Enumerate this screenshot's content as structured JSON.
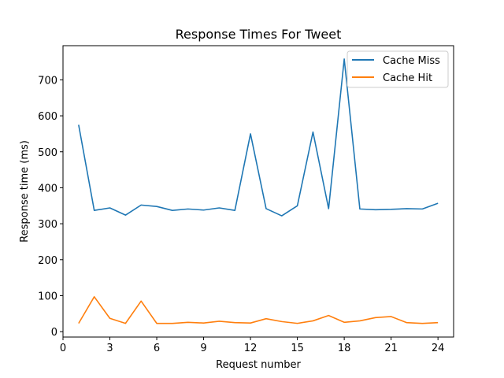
{
  "chart_data": {
    "type": "line",
    "title": "Response Times For Tweet",
    "xlabel": "Request number",
    "ylabel": "Response time (ms)",
    "x": [
      1,
      2,
      3,
      4,
      5,
      6,
      7,
      8,
      9,
      10,
      11,
      12,
      13,
      14,
      15,
      16,
      17,
      18,
      19,
      20,
      21,
      22,
      23,
      24
    ],
    "xlim": [
      0,
      25
    ],
    "ylim": [
      -15,
      795
    ],
    "xticks": [
      0,
      3,
      6,
      9,
      12,
      15,
      18,
      21,
      24
    ],
    "yticks": [
      0,
      100,
      200,
      300,
      400,
      500,
      600,
      700
    ],
    "grid": false,
    "legend_position": "top-right",
    "series": [
      {
        "name": "Cache Miss",
        "color": "#1f77b4",
        "values": [
          575,
          337,
          344,
          324,
          352,
          348,
          337,
          341,
          338,
          344,
          337,
          550,
          342,
          322,
          350,
          555,
          342,
          758,
          341,
          339,
          340,
          342,
          341,
          357
        ]
      },
      {
        "name": "Cache Hit",
        "color": "#ff7f0e",
        "values": [
          23,
          97,
          37,
          23,
          85,
          23,
          23,
          26,
          24,
          29,
          25,
          24,
          36,
          28,
          23,
          30,
          45,
          26,
          30,
          39,
          42,
          25,
          23,
          25
        ]
      }
    ]
  }
}
